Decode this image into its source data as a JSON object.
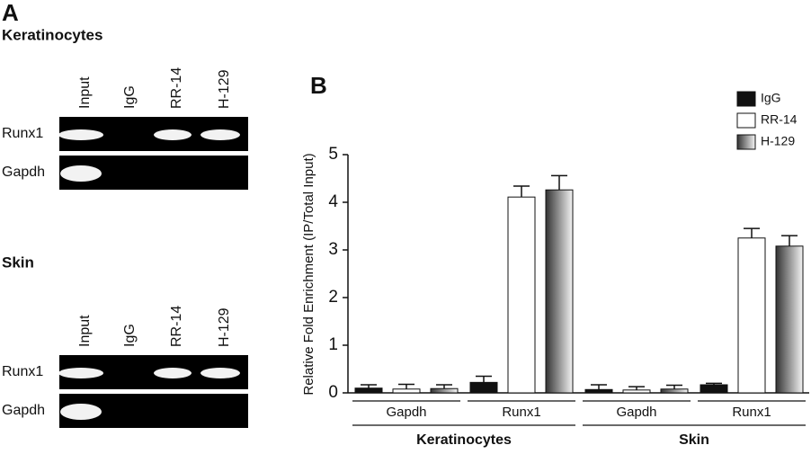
{
  "panel_a": {
    "label": "A",
    "blots": [
      {
        "title": "Keratinocytes",
        "lanes": [
          "Input",
          "IgG",
          "RR-14",
          "H-129"
        ],
        "rows": [
          "Runx1",
          "Gapdh"
        ]
      },
      {
        "title": "Skin",
        "lanes": [
          "Input",
          "IgG",
          "RR-14",
          "H-129"
        ],
        "rows": [
          "Runx1",
          "Gapdh"
        ]
      }
    ]
  },
  "chart_data": {
    "type": "bar",
    "panel_label": "B",
    "y_label": "Relative Fold Enrichment (IP/Total Input)",
    "categories": [
      "Gapdh",
      "Runx1",
      "Gapdh",
      "Runx1"
    ],
    "groups": [
      "Keratinocytes",
      "Skin"
    ],
    "series": [
      {
        "name": "IgG",
        "color": "#111111",
        "values": [
          0.1,
          0.22,
          0.07,
          0.17
        ],
        "errors": [
          0.07,
          0.13,
          0.1,
          0.03
        ]
      },
      {
        "name": "RR-14",
        "color": "#ffffff",
        "values": [
          0.08,
          4.11,
          0.06,
          3.25
        ],
        "errors": [
          0.1,
          0.23,
          0.07,
          0.2
        ]
      },
      {
        "name": "H-129",
        "gradient": [
          "#333333",
          "#f4f4f4"
        ],
        "values": [
          0.09,
          4.26,
          0.08,
          3.08
        ],
        "errors": [
          0.08,
          0.3,
          0.08,
          0.22
        ]
      }
    ],
    "ylim": [
      0,
      5
    ],
    "yticks": [
      0,
      1,
      2,
      3,
      4,
      5
    ]
  }
}
